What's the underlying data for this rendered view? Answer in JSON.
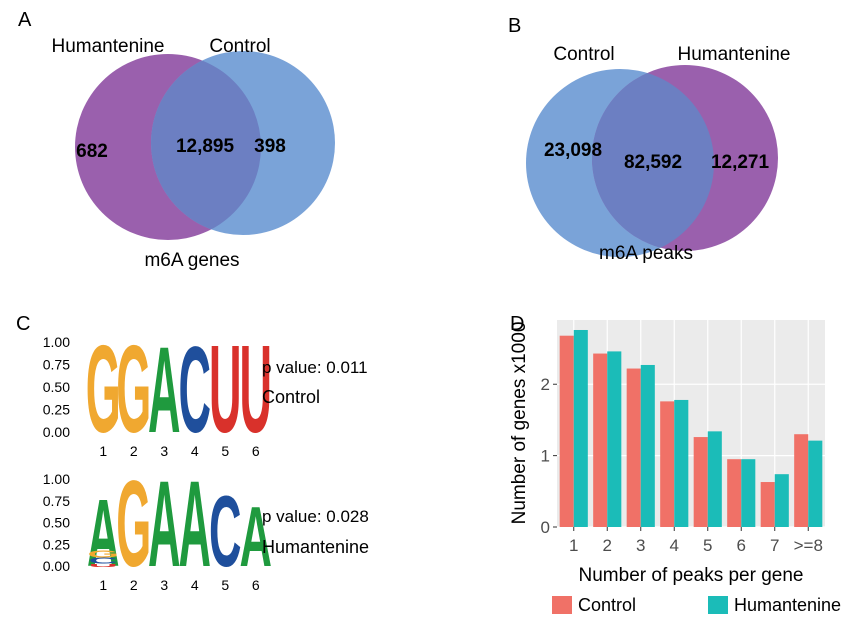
{
  "colors": {
    "humantenine_circle": "#9a60ad",
    "control_circle": "#7aa3d8",
    "overlap": "#6c7fc2",
    "control_bar": "#f07167",
    "humantenine_bar": "#1bbcb8",
    "panel_bg": "#ebebeb",
    "logo_A": "#1f9a3e",
    "logo_C": "#1f4f9c",
    "logo_G": "#f0a830",
    "logo_U": "#d9312b"
  },
  "panel_a": {
    "letter": "A",
    "left_label": "Humantenine",
    "right_label": "Control",
    "left_only": "682",
    "overlap": "12,895",
    "right_only": "398",
    "caption": "m6A genes"
  },
  "panel_b": {
    "letter": "B",
    "left_label": "Control",
    "right_label": "Humantenine",
    "left_only": "23,098",
    "overlap": "82,592",
    "right_only": "12,271",
    "caption": "m6A peaks"
  },
  "panel_c": {
    "letter": "C",
    "y_ticks": [
      "1.00",
      "0.75",
      "0.50",
      "0.25",
      "0.00"
    ],
    "x_ticks": [
      "1",
      "2",
      "3",
      "4",
      "5",
      "6"
    ],
    "motifs": [
      {
        "sequence": [
          "G",
          "G",
          "A",
          "C",
          "U",
          "U"
        ],
        "p_value": "p value: 0.011",
        "name": "Control"
      },
      {
        "sequence": [
          "A",
          "G",
          "A",
          "A",
          "C",
          "A"
        ],
        "p_value": "p value: 0.028",
        "name": "Humantenine"
      }
    ]
  },
  "chart_data": {
    "type": "bar",
    "panel_letter": "D",
    "categories": [
      "1",
      "2",
      "3",
      "4",
      "5",
      "6",
      "7",
      ">=8"
    ],
    "series": [
      {
        "name": "Control",
        "values": [
          2.68,
          2.43,
          2.22,
          1.76,
          1.26,
          0.95,
          0.63,
          1.3
        ]
      },
      {
        "name": "Humantenine",
        "values": [
          2.76,
          2.46,
          2.27,
          1.78,
          1.34,
          0.95,
          0.74,
          1.21
        ]
      }
    ],
    "xlabel": "Number of peaks per gene",
    "ylabel": "Number of genes x1000",
    "y_ticks": [
      "0",
      "1",
      "2"
    ],
    "ylim": [
      0,
      2.9
    ],
    "grid": true,
    "legend_position": "bottom"
  }
}
